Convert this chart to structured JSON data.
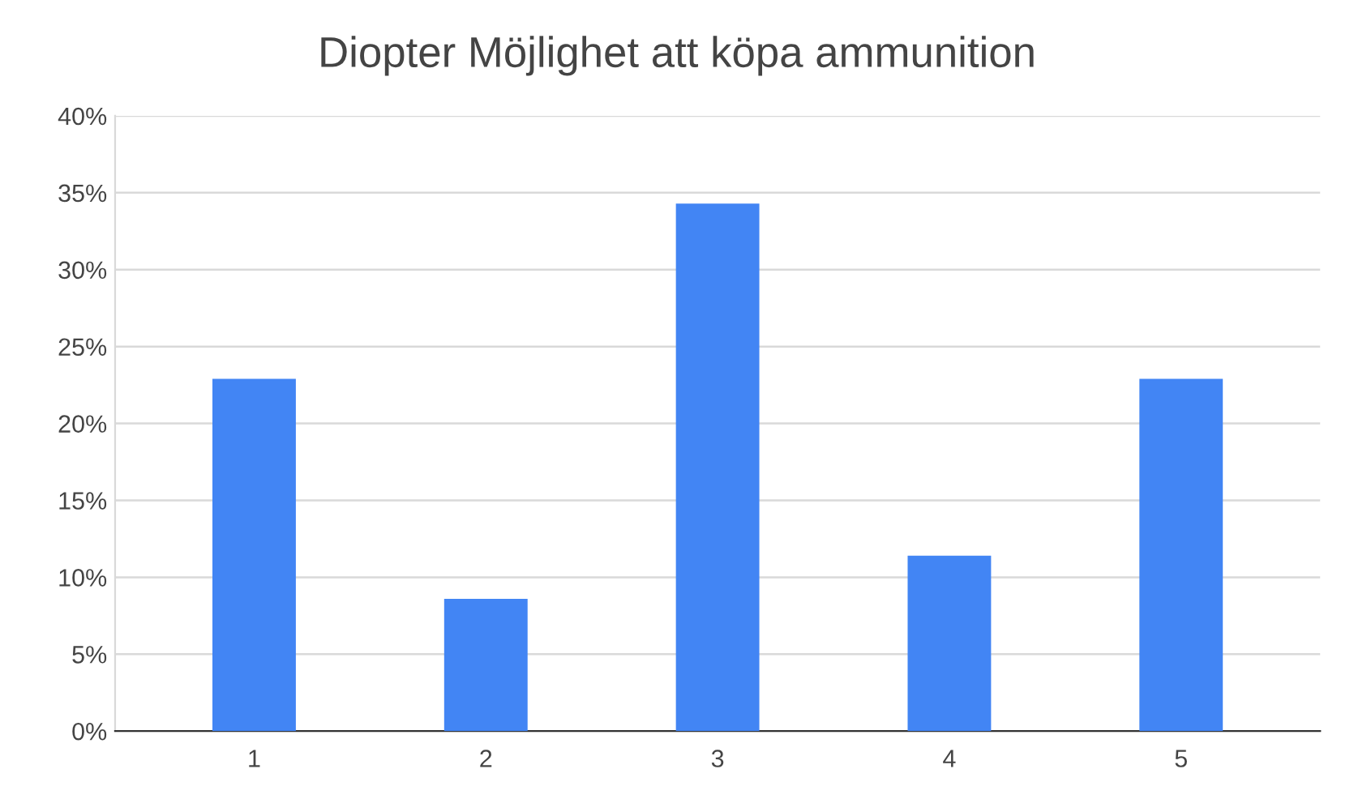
{
  "chart_data": {
    "type": "bar",
    "title": "Diopter Möjlighet att köpa ammunition",
    "categories": [
      "1",
      "2",
      "3",
      "4",
      "5"
    ],
    "values": [
      22.9,
      8.6,
      34.3,
      11.4,
      22.9
    ],
    "color": "#4285f4",
    "ylim": [
      0,
      40
    ],
    "yticks": [
      {
        "value": 0,
        "label": "0%"
      },
      {
        "value": 5,
        "label": "5%"
      },
      {
        "value": 10,
        "label": "10%"
      },
      {
        "value": 15,
        "label": "15%"
      },
      {
        "value": 20,
        "label": "20%"
      },
      {
        "value": 25,
        "label": "25%"
      },
      {
        "value": 30,
        "label": "30%"
      },
      {
        "value": 35,
        "label": "35%"
      },
      {
        "value": 40,
        "label": "40%"
      }
    ],
    "grid": "y"
  }
}
